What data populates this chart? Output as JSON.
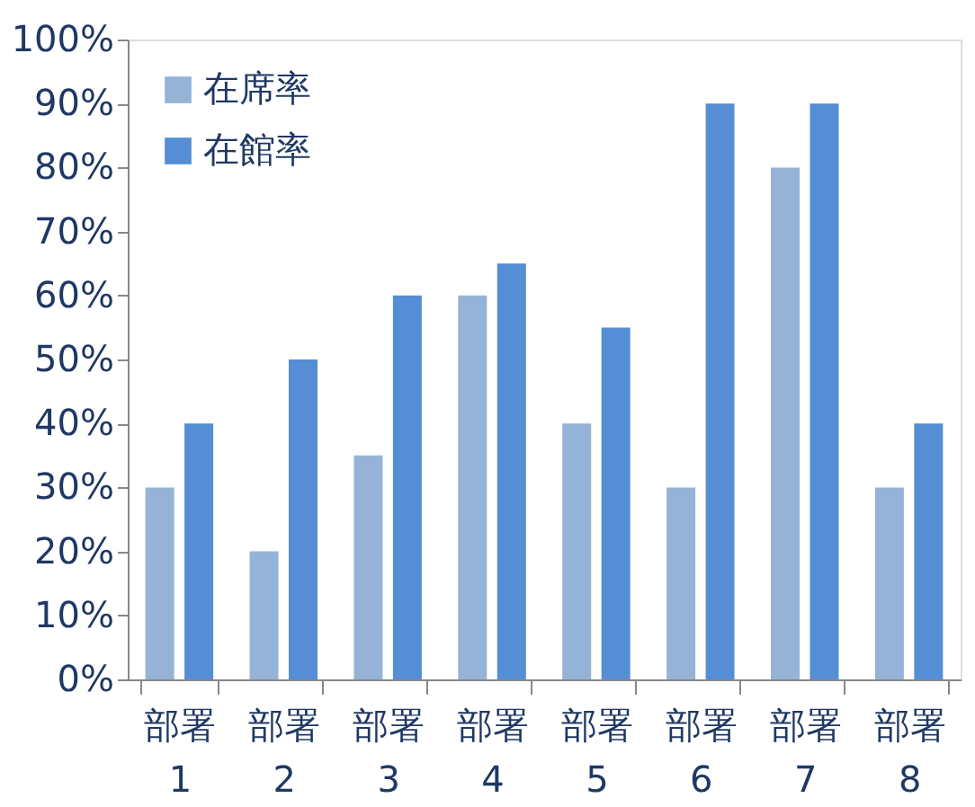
{
  "chart_data": {
    "type": "bar",
    "categories": [
      "部署 1",
      "部署 2",
      "部署 3",
      "部署 4",
      "部署 5",
      "部署 6",
      "部署 7",
      "部署 8"
    ],
    "series": [
      {
        "name": "在席率",
        "color": "#95b3d7",
        "values": [
          30,
          20,
          35,
          60,
          40,
          30,
          80,
          30
        ]
      },
      {
        "name": "在館率",
        "color": "#558ed5",
        "values": [
          40,
          50,
          60,
          65,
          55,
          90,
          90,
          40
        ]
      }
    ],
    "ylim": [
      0,
      100
    ],
    "yticks": [
      {
        "value": 0,
        "label": "0%"
      },
      {
        "value": 10,
        "label": "10%"
      },
      {
        "value": 20,
        "label": "20%"
      },
      {
        "value": 30,
        "label": "30%"
      },
      {
        "value": 40,
        "label": "40%"
      },
      {
        "value": 50,
        "label": "50%"
      },
      {
        "value": 60,
        "label": "60%"
      },
      {
        "value": 70,
        "label": "70%"
      },
      {
        "value": 80,
        "label": "80%"
      },
      {
        "value": 90,
        "label": "90%"
      },
      {
        "value": 100,
        "label": "100%"
      }
    ],
    "grid": false,
    "legend": "top left"
  }
}
